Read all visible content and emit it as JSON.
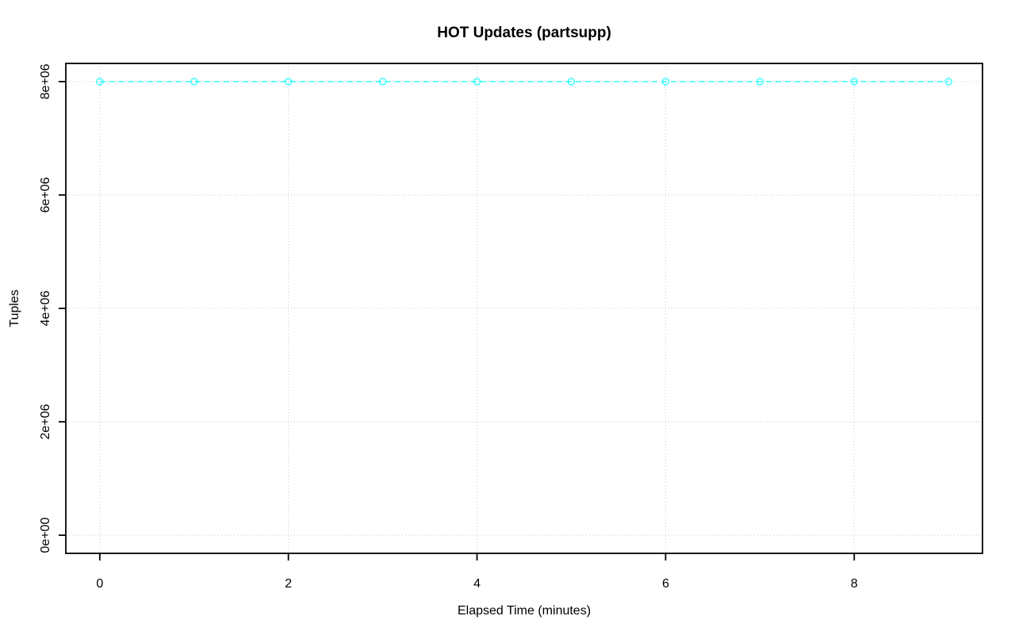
{
  "chart_data": {
    "type": "line",
    "title": "HOT Updates (partsupp)",
    "xlabel": "Elapsed Time (minutes)",
    "ylabel": "Tuples",
    "x": [
      0,
      1,
      2,
      3,
      4,
      5,
      6,
      7,
      8,
      9
    ],
    "series": [
      {
        "name": "HOT updates (partsupp)",
        "values": [
          8000000,
          8000000,
          8000000,
          8000000,
          8000000,
          8000000,
          8000000,
          8000000,
          8000000,
          8000000
        ]
      }
    ],
    "xlim": [
      0,
      9
    ],
    "ylim": [
      0,
      8000000
    ],
    "x_ticks": [
      0,
      2,
      4,
      6,
      8
    ],
    "x_tick_labels": [
      "0",
      "2",
      "4",
      "6",
      "8"
    ],
    "y_tick_values": [
      0,
      2000000,
      4000000,
      6000000,
      8000000
    ],
    "y_tick_labels": [
      "0e+00",
      "2e+06",
      "4e+06",
      "6e+06",
      "8e+06"
    ],
    "grid": true,
    "legend": null,
    "line_style": "dashed",
    "marker": "open-circle",
    "series_color": "#00ffff",
    "grid_color": "#d3d3d3",
    "axis_color": "#000000",
    "background": "#ffffff"
  }
}
